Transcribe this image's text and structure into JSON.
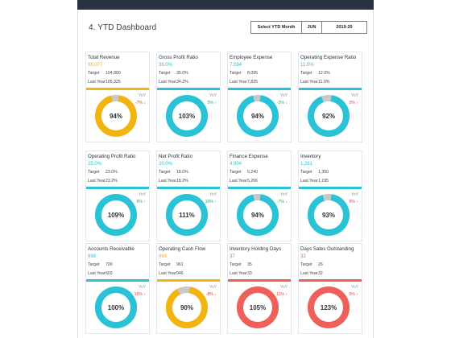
{
  "header": {
    "title": "4. YTD Dashboard",
    "select_label": "Select YTD Month",
    "month": "JUN",
    "year": "2019-20"
  },
  "labels": {
    "target": "Target",
    "last_year": "Last Year",
    "yoy": "YoY"
  },
  "colors": {
    "yellow": "#f2b50f",
    "cyan": "#29c2d6",
    "red": "#f0605a",
    "green": "#1faa6b",
    "down_red": "#e53935",
    "grey_track": "#c9c9c9"
  },
  "cards": [
    {
      "name": "Total Revenue",
      "value": "98,077",
      "target": "104,800",
      "last_year": "105,325",
      "yoy": "-7% ↓",
      "yoy_color": "down_red",
      "gauge": "94%",
      "gauge_fill": 0.94,
      "color": "yellow"
    },
    {
      "name": "Gross Profit Ratio",
      "value": "36.0%",
      "target": "35.0%",
      "last_year": "34.2%",
      "yoy": "5% ↑",
      "yoy_color": "green",
      "gauge": "103%",
      "gauge_fill": 1.0,
      "color": "cyan"
    },
    {
      "name": "Employee Expense",
      "value": "7,594",
      "target": "8,095",
      "last_year": "7,835",
      "yoy": "-3% ↓",
      "yoy_color": "green",
      "gauge": "94%",
      "gauge_fill": 0.94,
      "color": "cyan"
    },
    {
      "name": "Operating Expense Ratio",
      "value": "11.0%",
      "target": "12.0%",
      "last_year": "11.0%",
      "yoy": "0% ↑",
      "yoy_color": "down_red",
      "gauge": "92%",
      "gauge_fill": 0.92,
      "color": "cyan"
    },
    {
      "name": "Operating Profit Ratio",
      "value": "25.0%",
      "target": "23.0%",
      "last_year": "23.2%",
      "yoy": "8% ↑",
      "yoy_color": "green",
      "gauge": "109%",
      "gauge_fill": 1.0,
      "color": "cyan"
    },
    {
      "name": "Net Profit Ratio",
      "value": "20.0%",
      "target": "18.0%",
      "last_year": "18.2%",
      "yoy": "10% ↑",
      "yoy_color": "green",
      "gauge": "111%",
      "gauge_fill": 1.0,
      "color": "cyan"
    },
    {
      "name": "Finance Expense",
      "value": "4,904",
      "target": "5,240",
      "last_year": "5,266",
      "yoy": "-7% ↓",
      "yoy_color": "green",
      "gauge": "94%",
      "gauge_fill": 0.94,
      "color": "cyan"
    },
    {
      "name": "Inventory",
      "value": "1,261",
      "target": "1,350",
      "last_year": "1,195",
      "yoy": "6% ↑",
      "yoy_color": "down_red",
      "gauge": "93%",
      "gauge_fill": 0.93,
      "color": "cyan"
    },
    {
      "name": "Accounts Receivable",
      "value": "698",
      "target": "700",
      "last_year": "603",
      "yoy": "16% ↑",
      "yoy_color": "down_red",
      "gauge": "100%",
      "gauge_fill": 1.0,
      "color": "cyan"
    },
    {
      "name": "Operating Cash Flow",
      "value": "869",
      "target": "961",
      "last_year": "946",
      "yoy": "-8% ↓",
      "yoy_color": "down_red",
      "gauge": "90%",
      "gauge_fill": 0.9,
      "color": "yellow"
    },
    {
      "name": "Inventory Holding Days",
      "value": "37",
      "target": "35",
      "last_year": "33",
      "yoy": "11% ↑",
      "yoy_color": "down_red",
      "gauge": "105%",
      "gauge_fill": 1.0,
      "color": "red"
    },
    {
      "name": "Days Sales Outstanding",
      "value": "32",
      "target": "26",
      "last_year": "32",
      "yoy": "0% ↑",
      "yoy_color": "down_red",
      "gauge": "123%",
      "gauge_fill": 1.0,
      "color": "red"
    }
  ]
}
